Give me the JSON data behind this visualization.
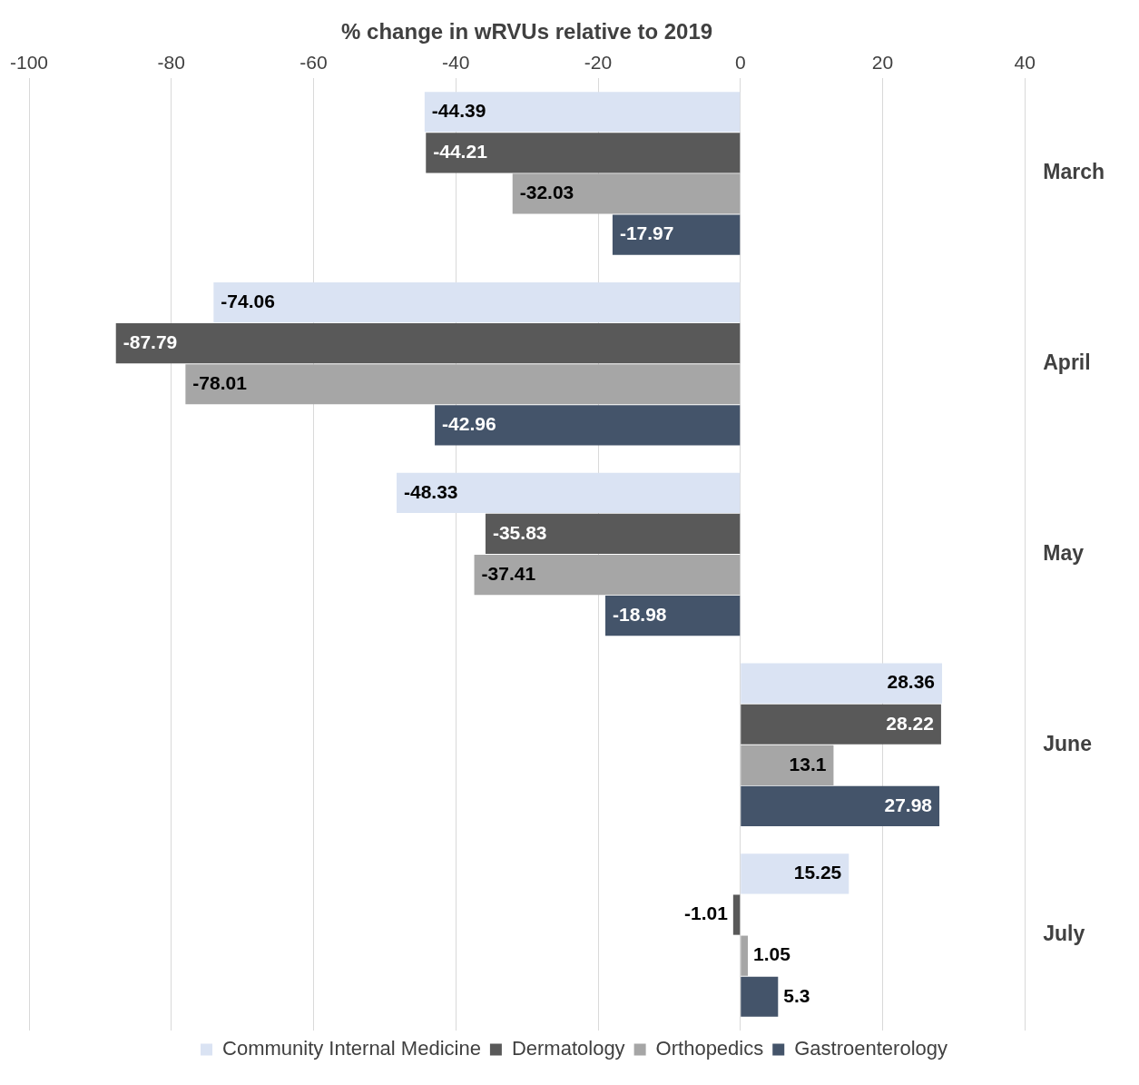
{
  "chart_data": {
    "type": "bar",
    "orientation": "horizontal",
    "xlabel": "% change in wRVUs relative to 2019",
    "categories": [
      "March",
      "April",
      "May",
      "June",
      "July"
    ],
    "series": [
      {
        "name": "Community Internal Medicine",
        "color": "#dae3f3",
        "values": [
          -44.39,
          -74.06,
          -48.33,
          28.36,
          15.25
        ]
      },
      {
        "name": "Dermatology",
        "color": "#595959",
        "values": [
          -44.21,
          -87.79,
          -35.83,
          28.22,
          -1.01
        ]
      },
      {
        "name": "Orthopedics",
        "color": "#a6a6a6",
        "values": [
          -32.03,
          -78.01,
          -37.41,
          13.1,
          1.05
        ]
      },
      {
        "name": "Gastroenterology",
        "color": "#44546a",
        "values": [
          -17.97,
          -42.96,
          -18.98,
          27.98,
          5.3
        ]
      }
    ],
    "xlim": [
      -100,
      40
    ],
    "xticks": [
      -100,
      -80,
      -60,
      -40,
      -20,
      0,
      20,
      40
    ],
    "grid": "x",
    "legend": "bottom",
    "data_labels": true
  }
}
